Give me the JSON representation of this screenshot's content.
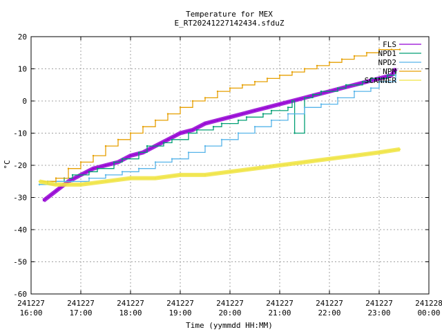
{
  "chart_data": {
    "type": "line",
    "title": "Temperature for MEX",
    "subtitle": "E_RT20241227142434.sfduZ",
    "xlabel": "Time (yymmdd HH:MM)",
    "ylabel": "°C",
    "ylim": [
      -60,
      20
    ],
    "yticks": [
      20,
      10,
      0,
      -10,
      -20,
      -30,
      -40,
      -50,
      -60
    ],
    "xlim": [
      "241227 16:00",
      "241228 00:00"
    ],
    "xticks": [
      {
        "date": "241227",
        "time": "16:00"
      },
      {
        "date": "241227",
        "time": "17:00"
      },
      {
        "date": "241227",
        "time": "18:00"
      },
      {
        "date": "241227",
        "time": "19:00"
      },
      {
        "date": "241227",
        "time": "20:00"
      },
      {
        "date": "241227",
        "time": "21:00"
      },
      {
        "date": "241227",
        "time": "22:00"
      },
      {
        "date": "241227",
        "time": "23:00"
      },
      {
        "date": "241228",
        "time": "00:00"
      }
    ],
    "grid": true,
    "legend_position": "top-right",
    "series": [
      {
        "name": "FLS",
        "color": "#9400d3",
        "style": "noisy",
        "x": [
          "16:15",
          "16:30",
          "16:45",
          "17:00",
          "17:15",
          "17:30",
          "17:45",
          "18:00",
          "18:15",
          "18:30",
          "18:45",
          "19:00",
          "19:15",
          "19:30",
          "19:45",
          "20:00",
          "20:15",
          "20:30",
          "20:45",
          "21:00",
          "21:15",
          "21:30",
          "21:45",
          "22:00",
          "22:15",
          "22:30",
          "22:45",
          "23:00",
          "23:15",
          "23:20"
        ],
        "y": [
          -31,
          -28,
          -25,
          -23,
          -21,
          -20,
          -19,
          -17,
          -16,
          -14,
          -12,
          -10,
          -9,
          -7,
          -6,
          -5,
          -4,
          -3,
          -2,
          -1,
          0,
          1,
          2,
          3,
          4,
          5,
          6,
          7,
          8,
          10
        ]
      },
      {
        "name": "NPD1",
        "color": "#009e73",
        "style": "step",
        "x": [
          "16:10",
          "16:20",
          "16:40",
          "16:50",
          "17:10",
          "17:20",
          "17:40",
          "17:50",
          "18:10",
          "18:20",
          "18:40",
          "18:50",
          "19:10",
          "19:20",
          "19:40",
          "19:50",
          "20:10",
          "20:20",
          "20:40",
          "20:50",
          "21:10",
          "21:15",
          "21:18",
          "21:30",
          "21:40",
          "21:50",
          "22:10",
          "22:20",
          "22:40",
          "22:50",
          "23:10",
          "23:20"
        ],
        "y": [
          -26,
          -25,
          -24,
          -23,
          -22,
          -21,
          -19,
          -18,
          -16,
          -14,
          -13,
          -12,
          -10,
          -9,
          -8,
          -7,
          -6,
          -5,
          -4,
          -3,
          -2,
          0,
          -10,
          1,
          2,
          3,
          4,
          5,
          6,
          7,
          8,
          9
        ]
      },
      {
        "name": "NPD2",
        "color": "#56b4e9",
        "style": "step",
        "x": [
          "16:10",
          "16:30",
          "16:50",
          "17:10",
          "17:30",
          "17:50",
          "18:10",
          "18:30",
          "18:50",
          "19:10",
          "19:30",
          "19:50",
          "20:10",
          "20:30",
          "20:50",
          "21:10",
          "21:30",
          "21:50",
          "22:10",
          "22:30",
          "22:50",
          "23:00",
          "23:20"
        ],
        "y": [
          -26,
          -25,
          -25,
          -24,
          -23,
          -22,
          -21,
          -19,
          -18,
          -16,
          -14,
          -12,
          -10,
          -8,
          -6,
          -4,
          -2,
          -1,
          1,
          3,
          4,
          6,
          8
        ]
      },
      {
        "name": "NPM",
        "color": "#e69f00",
        "style": "step",
        "x": [
          "16:10",
          "16:30",
          "16:45",
          "17:00",
          "17:15",
          "17:30",
          "17:45",
          "18:00",
          "18:15",
          "18:30",
          "18:45",
          "19:00",
          "19:15",
          "19:30",
          "19:45",
          "20:00",
          "20:15",
          "20:30",
          "20:45",
          "21:00",
          "21:15",
          "21:30",
          "21:45",
          "22:00",
          "22:15",
          "22:30",
          "22:45",
          "23:00",
          "23:15",
          "23:25"
        ],
        "y": [
          -25,
          -24,
          -21,
          -19,
          -17,
          -14,
          -12,
          -10,
          -8,
          -6,
          -4,
          -2,
          0,
          1,
          3,
          4,
          5,
          6,
          7,
          8,
          9,
          10,
          11,
          12,
          13,
          14,
          15,
          16,
          16,
          16
        ]
      },
      {
        "name": "SCANNER",
        "color": "#f0e442",
        "style": "noisy",
        "x": [
          "16:10",
          "16:30",
          "17:00",
          "17:30",
          "18:00",
          "18:30",
          "19:00",
          "19:30",
          "20:00",
          "20:30",
          "21:00",
          "21:30",
          "22:00",
          "22:30",
          "23:00",
          "23:25"
        ],
        "y": [
          -25,
          -26,
          -26,
          -25,
          -24,
          -24,
          -23,
          -23,
          -22,
          -21,
          -20,
          -19,
          -18,
          -17,
          -16,
          -15
        ]
      }
    ]
  }
}
